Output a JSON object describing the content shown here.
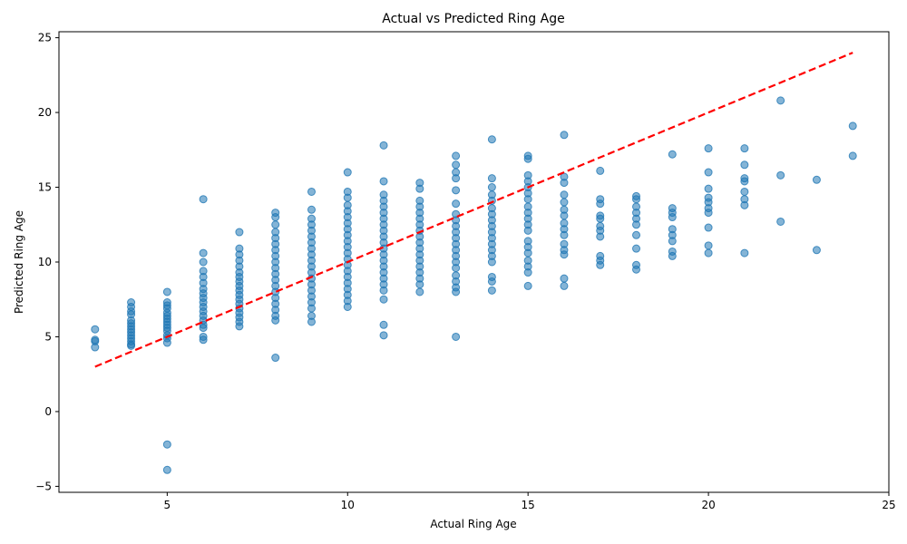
{
  "chart_data": {
    "type": "scatter",
    "title": "Actual vs Predicted Ring Age",
    "xlabel": "Actual Ring Age",
    "ylabel": "Predicted Ring Age",
    "xlim": [
      2,
      25
    ],
    "ylim": [
      -5.4,
      25.4
    ],
    "xticks": [
      5,
      10,
      15,
      20,
      25
    ],
    "yticks": [
      -5,
      0,
      5,
      10,
      15,
      20,
      25
    ],
    "grid": false,
    "colors": {
      "points": "#1f77b4",
      "reference_line": "#ff0000"
    },
    "reference_line": {
      "x": [
        3,
        24
      ],
      "y": [
        3,
        24
      ],
      "style": "dashed"
    },
    "series": [
      {
        "points": [
          [
            3,
            5.5
          ],
          [
            3,
            4.8
          ],
          [
            3,
            4.7
          ],
          [
            3,
            4.3
          ],
          [
            4,
            7.3
          ],
          [
            4,
            7.0
          ],
          [
            4,
            6.7
          ],
          [
            4,
            6.5
          ],
          [
            4,
            6.1
          ],
          [
            4,
            5.9
          ],
          [
            4,
            5.7
          ],
          [
            4,
            5.5
          ],
          [
            4,
            5.3
          ],
          [
            4,
            5.1
          ],
          [
            4,
            4.9
          ],
          [
            4,
            4.7
          ],
          [
            4,
            4.5
          ],
          [
            4,
            4.4
          ],
          [
            5,
            8.0
          ],
          [
            5,
            7.3
          ],
          [
            5,
            7.1
          ],
          [
            5,
            6.9
          ],
          [
            5,
            6.6
          ],
          [
            5,
            6.4
          ],
          [
            5,
            6.2
          ],
          [
            5,
            6.0
          ],
          [
            5,
            5.8
          ],
          [
            5,
            5.6
          ],
          [
            5,
            5.4
          ],
          [
            5,
            5.1
          ],
          [
            5,
            4.9
          ],
          [
            5,
            4.6
          ],
          [
            5,
            -2.2
          ],
          [
            5,
            -3.9
          ],
          [
            6,
            14.2
          ],
          [
            6,
            10.6
          ],
          [
            6,
            10.0
          ],
          [
            6,
            9.4
          ],
          [
            6,
            9.0
          ],
          [
            6,
            8.6
          ],
          [
            6,
            8.2
          ],
          [
            6,
            7.9
          ],
          [
            6,
            7.6
          ],
          [
            6,
            7.3
          ],
          [
            6,
            7.0
          ],
          [
            6,
            6.7
          ],
          [
            6,
            6.4
          ],
          [
            6,
            6.1
          ],
          [
            6,
            5.8
          ],
          [
            6,
            5.6
          ],
          [
            6,
            5.0
          ],
          [
            6,
            4.8
          ],
          [
            7,
            12.0
          ],
          [
            7,
            10.9
          ],
          [
            7,
            10.5
          ],
          [
            7,
            10.1
          ],
          [
            7,
            9.7
          ],
          [
            7,
            9.3
          ],
          [
            7,
            9.0
          ],
          [
            7,
            8.7
          ],
          [
            7,
            8.4
          ],
          [
            7,
            8.1
          ],
          [
            7,
            7.8
          ],
          [
            7,
            7.5
          ],
          [
            7,
            7.2
          ],
          [
            7,
            6.9
          ],
          [
            7,
            6.6
          ],
          [
            7,
            6.3
          ],
          [
            7,
            6.0
          ],
          [
            7,
            5.7
          ],
          [
            8,
            13.3
          ],
          [
            8,
            13.0
          ],
          [
            8,
            12.5
          ],
          [
            8,
            12.0
          ],
          [
            8,
            11.6
          ],
          [
            8,
            11.2
          ],
          [
            8,
            10.8
          ],
          [
            8,
            10.4
          ],
          [
            8,
            10.0
          ],
          [
            8,
            9.6
          ],
          [
            8,
            9.2
          ],
          [
            8,
            8.8
          ],
          [
            8,
            8.4
          ],
          [
            8,
            8.0
          ],
          [
            8,
            7.6
          ],
          [
            8,
            7.2
          ],
          [
            8,
            6.8
          ],
          [
            8,
            6.4
          ],
          [
            8,
            6.1
          ],
          [
            8,
            3.6
          ],
          [
            9,
            14.7
          ],
          [
            9,
            13.5
          ],
          [
            9,
            12.9
          ],
          [
            9,
            12.5
          ],
          [
            9,
            12.1
          ],
          [
            9,
            11.7
          ],
          [
            9,
            11.3
          ],
          [
            9,
            10.9
          ],
          [
            9,
            10.5
          ],
          [
            9,
            10.1
          ],
          [
            9,
            9.7
          ],
          [
            9,
            9.3
          ],
          [
            9,
            8.9
          ],
          [
            9,
            8.5
          ],
          [
            9,
            8.1
          ],
          [
            9,
            7.7
          ],
          [
            9,
            7.3
          ],
          [
            9,
            6.9
          ],
          [
            9,
            6.4
          ],
          [
            9,
            6.0
          ],
          [
            10,
            16.0
          ],
          [
            10,
            14.7
          ],
          [
            10,
            14.3
          ],
          [
            10,
            13.8
          ],
          [
            10,
            13.4
          ],
          [
            10,
            13.0
          ],
          [
            10,
            12.6
          ],
          [
            10,
            12.2
          ],
          [
            10,
            11.8
          ],
          [
            10,
            11.4
          ],
          [
            10,
            11.0
          ],
          [
            10,
            10.6
          ],
          [
            10,
            10.2
          ],
          [
            10,
            9.8
          ],
          [
            10,
            9.4
          ],
          [
            10,
            9.0
          ],
          [
            10,
            8.6
          ],
          [
            10,
            8.2
          ],
          [
            10,
            7.8
          ],
          [
            10,
            7.4
          ],
          [
            10,
            7.0
          ],
          [
            11,
            17.8
          ],
          [
            11,
            15.4
          ],
          [
            11,
            14.5
          ],
          [
            11,
            14.1
          ],
          [
            11,
            13.7
          ],
          [
            11,
            13.3
          ],
          [
            11,
            12.9
          ],
          [
            11,
            12.5
          ],
          [
            11,
            12.1
          ],
          [
            11,
            11.7
          ],
          [
            11,
            11.3
          ],
          [
            11,
            10.9
          ],
          [
            11,
            10.5
          ],
          [
            11,
            10.1
          ],
          [
            11,
            9.7
          ],
          [
            11,
            9.3
          ],
          [
            11,
            8.9
          ],
          [
            11,
            8.5
          ],
          [
            11,
            8.1
          ],
          [
            11,
            7.5
          ],
          [
            11,
            5.8
          ],
          [
            11,
            5.1
          ],
          [
            12,
            15.3
          ],
          [
            12,
            14.9
          ],
          [
            12,
            14.1
          ],
          [
            12,
            13.7
          ],
          [
            12,
            13.3
          ],
          [
            12,
            12.9
          ],
          [
            12,
            12.5
          ],
          [
            12,
            12.1
          ],
          [
            12,
            11.7
          ],
          [
            12,
            11.3
          ],
          [
            12,
            10.9
          ],
          [
            12,
            10.5
          ],
          [
            12,
            10.1
          ],
          [
            12,
            9.7
          ],
          [
            12,
            9.3
          ],
          [
            12,
            8.9
          ],
          [
            12,
            8.5
          ],
          [
            12,
            8.0
          ],
          [
            13,
            17.1
          ],
          [
            13,
            16.5
          ],
          [
            13,
            16.0
          ],
          [
            13,
            15.6
          ],
          [
            13,
            14.8
          ],
          [
            13,
            13.9
          ],
          [
            13,
            13.2
          ],
          [
            13,
            12.8
          ],
          [
            13,
            12.4
          ],
          [
            13,
            12.0
          ],
          [
            13,
            11.6
          ],
          [
            13,
            11.2
          ],
          [
            13,
            10.8
          ],
          [
            13,
            10.4
          ],
          [
            13,
            10.0
          ],
          [
            13,
            9.6
          ],
          [
            13,
            9.1
          ],
          [
            13,
            8.7
          ],
          [
            13,
            8.3
          ],
          [
            13,
            8.0
          ],
          [
            13,
            5.0
          ],
          [
            14,
            18.2
          ],
          [
            14,
            15.6
          ],
          [
            14,
            15.0
          ],
          [
            14,
            14.5
          ],
          [
            14,
            14.1
          ],
          [
            14,
            13.6
          ],
          [
            14,
            13.2
          ],
          [
            14,
            12.8
          ],
          [
            14,
            12.4
          ],
          [
            14,
            12.0
          ],
          [
            14,
            11.6
          ],
          [
            14,
            11.2
          ],
          [
            14,
            10.8
          ],
          [
            14,
            10.4
          ],
          [
            14,
            10.0
          ],
          [
            14,
            9.0
          ],
          [
            14,
            8.7
          ],
          [
            14,
            8.1
          ],
          [
            15,
            17.1
          ],
          [
            15,
            16.9
          ],
          [
            15,
            15.8
          ],
          [
            15,
            15.4
          ],
          [
            15,
            15.0
          ],
          [
            15,
            14.6
          ],
          [
            15,
            14.2
          ],
          [
            15,
            13.7
          ],
          [
            15,
            13.3
          ],
          [
            15,
            12.9
          ],
          [
            15,
            12.5
          ],
          [
            15,
            12.1
          ],
          [
            15,
            11.4
          ],
          [
            15,
            11.0
          ],
          [
            15,
            10.6
          ],
          [
            15,
            10.1
          ],
          [
            15,
            9.7
          ],
          [
            15,
            9.3
          ],
          [
            15,
            8.4
          ],
          [
            16,
            18.5
          ],
          [
            16,
            15.7
          ],
          [
            16,
            15.3
          ],
          [
            16,
            14.5
          ],
          [
            16,
            14.0
          ],
          [
            16,
            13.5
          ],
          [
            16,
            13.1
          ],
          [
            16,
            12.6
          ],
          [
            16,
            12.2
          ],
          [
            16,
            11.8
          ],
          [
            16,
            11.2
          ],
          [
            16,
            10.8
          ],
          [
            16,
            10.5
          ],
          [
            16,
            8.9
          ],
          [
            16,
            8.4
          ],
          [
            17,
            16.1
          ],
          [
            17,
            14.2
          ],
          [
            17,
            13.9
          ],
          [
            17,
            13.1
          ],
          [
            17,
            12.9
          ],
          [
            17,
            12.4
          ],
          [
            17,
            12.1
          ],
          [
            17,
            11.7
          ],
          [
            17,
            10.4
          ],
          [
            17,
            10.1
          ],
          [
            17,
            9.8
          ],
          [
            18,
            14.4
          ],
          [
            18,
            14.2
          ],
          [
            18,
            13.7
          ],
          [
            18,
            13.3
          ],
          [
            18,
            12.9
          ],
          [
            18,
            12.5
          ],
          [
            18,
            11.8
          ],
          [
            18,
            10.9
          ],
          [
            18,
            9.8
          ],
          [
            18,
            9.5
          ],
          [
            19,
            17.2
          ],
          [
            19,
            13.6
          ],
          [
            19,
            13.3
          ],
          [
            19,
            13.0
          ],
          [
            19,
            12.2
          ],
          [
            19,
            11.8
          ],
          [
            19,
            11.4
          ],
          [
            19,
            10.7
          ],
          [
            19,
            10.4
          ],
          [
            20,
            17.6
          ],
          [
            20,
            16.0
          ],
          [
            20,
            14.9
          ],
          [
            20,
            14.3
          ],
          [
            20,
            14.0
          ],
          [
            20,
            13.6
          ],
          [
            20,
            13.3
          ],
          [
            20,
            12.3
          ],
          [
            20,
            11.1
          ],
          [
            20,
            10.6
          ],
          [
            21,
            17.6
          ],
          [
            21,
            16.5
          ],
          [
            21,
            15.6
          ],
          [
            21,
            15.4
          ],
          [
            21,
            14.7
          ],
          [
            21,
            14.2
          ],
          [
            21,
            13.8
          ],
          [
            21,
            10.6
          ],
          [
            22,
            20.8
          ],
          [
            22,
            15.8
          ],
          [
            22,
            12.7
          ],
          [
            23,
            15.5
          ],
          [
            23,
            10.8
          ],
          [
            24,
            19.1
          ],
          [
            24,
            17.1
          ]
        ]
      }
    ]
  }
}
